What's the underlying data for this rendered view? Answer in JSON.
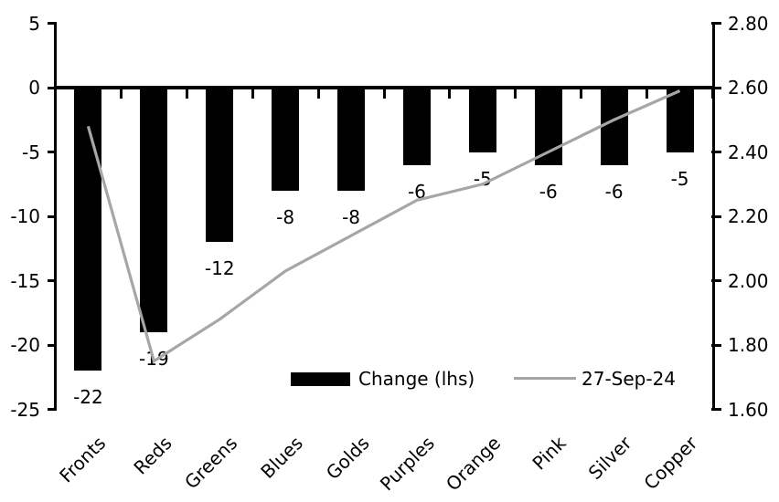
{
  "chart_data": {
    "type": "bar+line",
    "subtype": "combo chart, dual axis, negative black bars with labels and gray line series",
    "categories": [
      "Fronts",
      "Reds",
      "Greens",
      "Blues",
      "Golds",
      "Purples",
      "Orange",
      "Pink",
      "Silver",
      "Copper"
    ],
    "series": [
      {
        "name": "Change (lhs)",
        "type": "bar",
        "axis": "left",
        "color": "#000000",
        "values": [
          -22,
          -19,
          -12,
          -8,
          -8,
          -6,
          -5,
          -6,
          -6,
          -5
        ],
        "data_labels": [
          "-22",
          "-19",
          "-12",
          "-8",
          "-8",
          "-6",
          "-5",
          "-6",
          "-6",
          "-5"
        ]
      },
      {
        "name": "27-Sep-24",
        "type": "line",
        "axis": "right",
        "color": "#a6a6a6",
        "values": [
          2.48,
          1.75,
          1.88,
          2.03,
          2.14,
          2.25,
          2.3,
          2.4,
          2.5,
          2.59
        ]
      }
    ],
    "left_axis": {
      "min": -25,
      "max": 5,
      "step": 5,
      "ticks": [
        "5",
        "0",
        "-5",
        "-10",
        "-15",
        "-20",
        "-25"
      ]
    },
    "right_axis": {
      "min": 1.6,
      "max": 2.8,
      "step": 0.2,
      "ticks": [
        "2.80",
        "2.60",
        "2.40",
        "2.20",
        "2.00",
        "1.80",
        "1.60"
      ]
    },
    "legend": {
      "position": "bottom-inside",
      "bar_label": "Change (lhs)",
      "line_label": "27-Sep-24"
    },
    "title": "",
    "grid": false,
    "zero_line_at_right_axis_value": 2.6,
    "colors": {
      "bar": "#000000",
      "line": "#a6a6a6",
      "axis": "#000000",
      "text": "#000000",
      "background": "#ffffff"
    }
  }
}
